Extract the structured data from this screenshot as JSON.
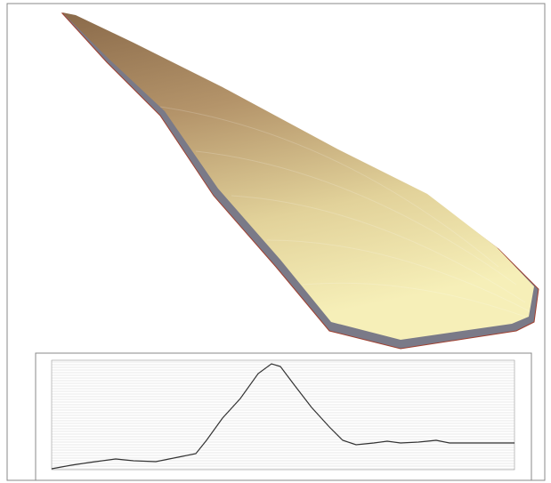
{
  "chart_data": {
    "type": "line",
    "x": [
      0,
      22,
      42,
      72,
      92,
      117,
      142,
      162,
      174,
      192,
      212,
      232,
      247,
      257,
      272,
      292,
      312,
      327,
      342,
      362,
      377,
      392,
      412,
      432,
      447,
      482,
      520
    ],
    "series": [
      {
        "color": "#333333",
        "values": [
          1,
          5,
          8,
          12,
          10,
          9,
          14,
          18,
          33,
          58,
          80,
          108,
          119,
          116,
          96,
          70,
          48,
          33,
          28,
          30,
          32,
          30,
          31,
          33,
          30,
          30,
          30
        ]
      }
    ],
    "grid": true
  }
}
